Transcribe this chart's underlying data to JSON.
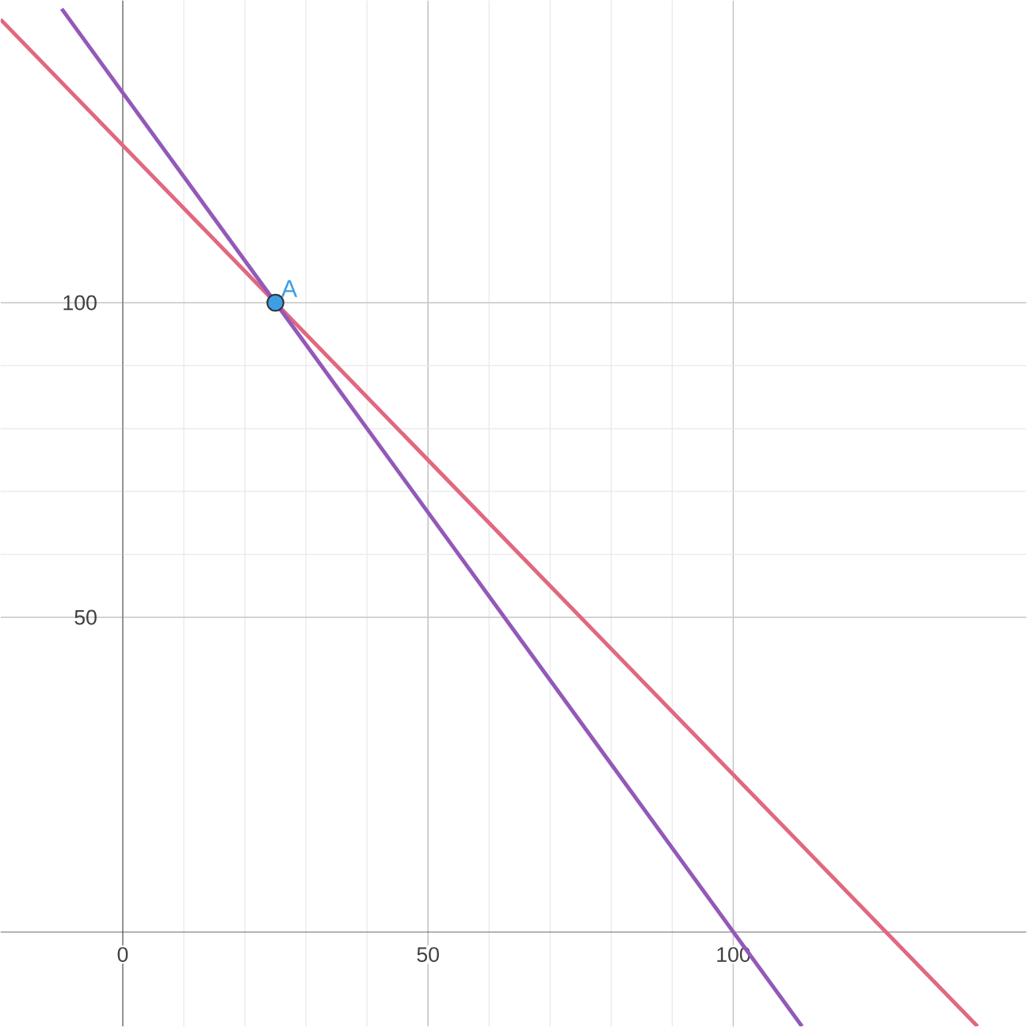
{
  "chart_data": {
    "type": "line",
    "xlim": [
      -20,
      148
    ],
    "ylim": [
      -15,
      148
    ],
    "xticks": [
      0,
      50,
      100
    ],
    "yticks": [
      50,
      100
    ],
    "grid": true,
    "series": [
      {
        "color": "#e0687f",
        "x": [
          -20,
          140
        ],
        "values": [
          145,
          -15
        ],
        "marker": "none"
      },
      {
        "color": "#9359b8",
        "x": [
          -10,
          111.25
        ],
        "values": [
          146.7,
          -15
        ],
        "marker": "none"
      },
      {
        "type": "scatter",
        "color": "#3d9ee6",
        "x": [
          25
        ],
        "values": [
          100
        ],
        "marker": "circle"
      }
    ],
    "annotations": [
      {
        "text": "A",
        "x": 25,
        "y": 100
      }
    ]
  }
}
